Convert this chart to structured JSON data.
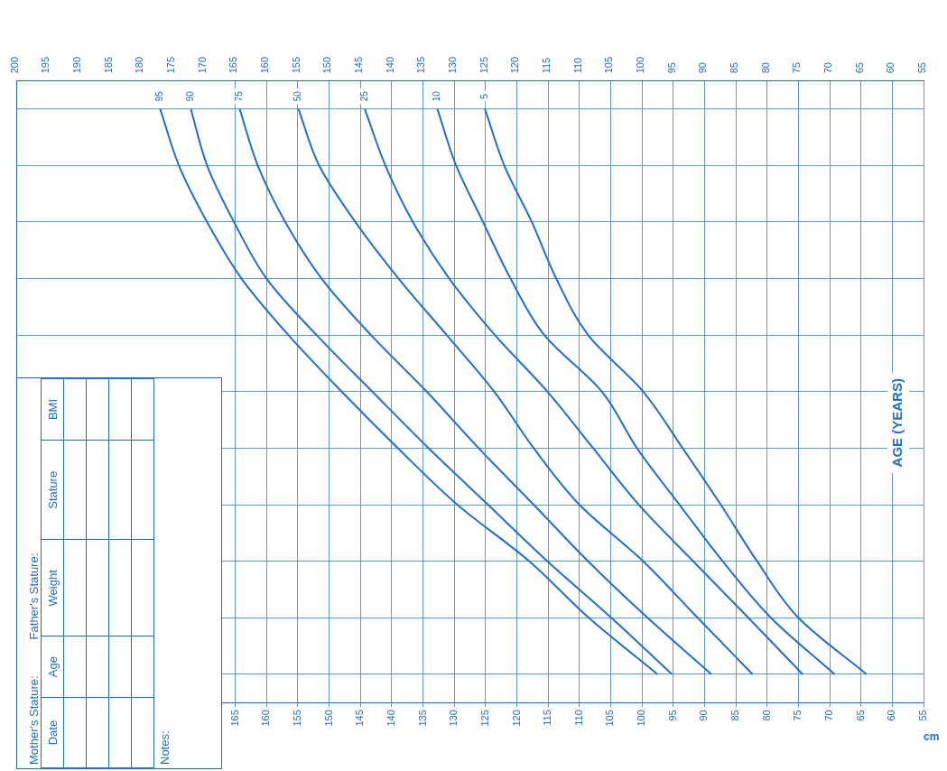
{
  "chart_data": {
    "type": "line",
    "orientation": "horizontal",
    "ylabel": "AGE (YEARS)",
    "xlabel": "cm",
    "categories": [
      null,
      null,
      null,
      null,
      null,
      null,
      null,
      null,
      null,
      null,
      null
    ],
    "series": [
      {
        "name": "95",
        "color": "#1f6fd0",
        "values": [
          177,
          174,
          169.5,
          164,
          156.5,
          148,
          139,
          129.5,
          118,
          108.5,
          97.5
        ]
      },
      {
        "name": "90",
        "color": "#1f6fd0",
        "values": [
          172.1,
          169.5,
          165.2,
          160,
          152,
          143.1,
          134.1,
          124.6,
          115.1,
          104.9,
          95.2
        ]
      },
      {
        "name": "75",
        "color": "#1f6fd0",
        "values": [
          164.3,
          161.4,
          157,
          151.2,
          143.3,
          134.4,
          126.1,
          117.3,
          108.6,
          99.1,
          88.9
        ]
      },
      {
        "name": "50",
        "color": "#1f6fd0",
        "values": [
          154.9,
          151.6,
          145.8,
          138.9,
          131.2,
          123.6,
          117.3,
          110,
          99.8,
          91.1,
          82.3
        ]
      },
      {
        "name": "25",
        "color": "#1f6fd0",
        "values": [
          144.3,
          141,
          136.6,
          130.8,
          123.5,
          115.1,
          107.8,
          100.5,
          91.8,
          83,
          74.3
        ]
      },
      {
        "name": "10",
        "color": "#1f6fd0",
        "values": [
          132.7,
          129.7,
          125.4,
          121,
          115.6,
          106.4,
          100.8,
          94,
          87.1,
          79.4,
          69.2
        ]
      },
      {
        "name": "5",
        "color": "#1f6fd0",
        "values": [
          125.1,
          122,
          117.6,
          113.7,
          108.6,
          99.8,
          93.5,
          87.4,
          81.6,
          75,
          64.1
        ]
      }
    ],
    "xlim": [
      200,
      55
    ],
    "xticks": [
      55,
      60,
      65,
      70,
      75,
      80,
      85,
      90,
      95,
      100,
      105,
      110,
      115,
      120,
      125,
      130,
      135,
      140,
      145,
      150,
      155,
      160,
      165
    ],
    "x2lim": [
      200,
      55
    ],
    "x2ticks": [
      55,
      60,
      65,
      70,
      75,
      80,
      85,
      90,
      95,
      100,
      105,
      110,
      115,
      120,
      125,
      130,
      135,
      140,
      145,
      150,
      155,
      160,
      165,
      170,
      175,
      180,
      185,
      190,
      195,
      200
    ],
    "tick_labels": "x",
    "grid": true,
    "legend": false,
    "marker": "none",
    "line_style": "solid",
    "annotations": [
      "Mother's Stature:",
      "Father's Stature:",
      "Date",
      "Age",
      "Weight",
      "Stature",
      "BMI",
      "Notes:"
    ]
  }
}
